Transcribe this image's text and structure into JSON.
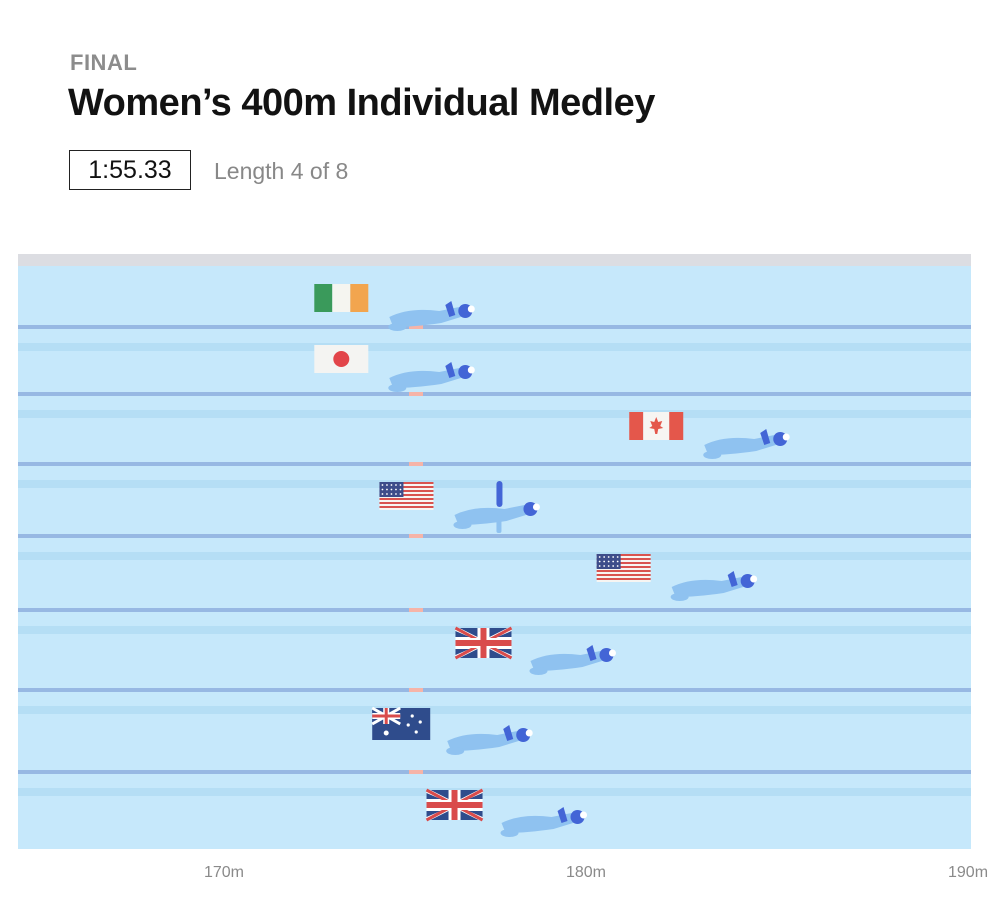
{
  "header": {
    "kicker": "FINAL",
    "title": "Women’s 400m Individual Medley",
    "clock": "1:55.33",
    "length_status": "Length 4 of 8"
  },
  "colors": {
    "water": "#c6e8fb",
    "lane_band": "#b5def5",
    "lane_line": "#97b8e3",
    "wall": "#dcdde2",
    "swimmer": "#8fc2f0",
    "swimmer_dark": "#4365d6",
    "marker": "#f6b4a8"
  },
  "lanes": [
    {
      "flag": "ireland-flag",
      "distance_m": 176.5
    },
    {
      "flag": "japan-flag",
      "distance_m": 176.5
    },
    {
      "flag": "canada-flag",
      "distance_m": 185.2
    },
    {
      "flag": "usa-flag",
      "distance_m": 178.3
    },
    {
      "flag": "usa-flag",
      "distance_m": 184.3
    },
    {
      "flag": "great-britain-flag",
      "distance_m": 180.4
    },
    {
      "flag": "australia-flag",
      "distance_m": 178.1
    },
    {
      "flag": "great-britain-flag",
      "distance_m": 179.6
    }
  ],
  "axis": {
    "ticks": [
      "170m",
      "180m",
      "190m"
    ]
  }
}
